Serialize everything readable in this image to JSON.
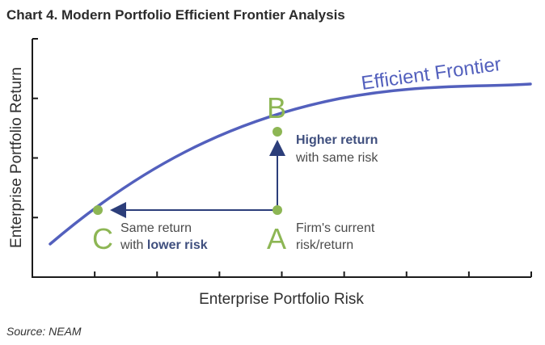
{
  "title": "Chart 4. Modern Portfolio Efficient Frontier Analysis",
  "source": "Source: NEAM",
  "chart_data": {
    "type": "line",
    "xlabel": "Enterprise Portfolio Risk",
    "ylabel": "Enterprise Portfolio Return",
    "x_ticks": 8,
    "y_ticks": 4,
    "series": [
      {
        "name": "Efficient Frontier",
        "shape": "concave-increasing-curve"
      }
    ],
    "points": [
      {
        "id": "A",
        "letter": "A",
        "desc": [
          "Firm's current",
          "risk/return"
        ]
      },
      {
        "id": "B",
        "letter": "B",
        "desc_bold": "Higher return",
        "desc": "with same risk"
      },
      {
        "id": "C",
        "letter": "C",
        "desc_prefix": "Same return",
        "desc_line2": "with ",
        "desc_bold": "lower risk"
      }
    ],
    "arrows": [
      {
        "from": "A",
        "to": "B",
        "direction": "up"
      },
      {
        "from": "A",
        "to": "C",
        "direction": "left"
      }
    ],
    "colors": {
      "curve": "#5360bd",
      "points": "#8db654",
      "arrows": "#2c3e7a",
      "emphasis": "#3f4f7e"
    },
    "grid": false
  }
}
